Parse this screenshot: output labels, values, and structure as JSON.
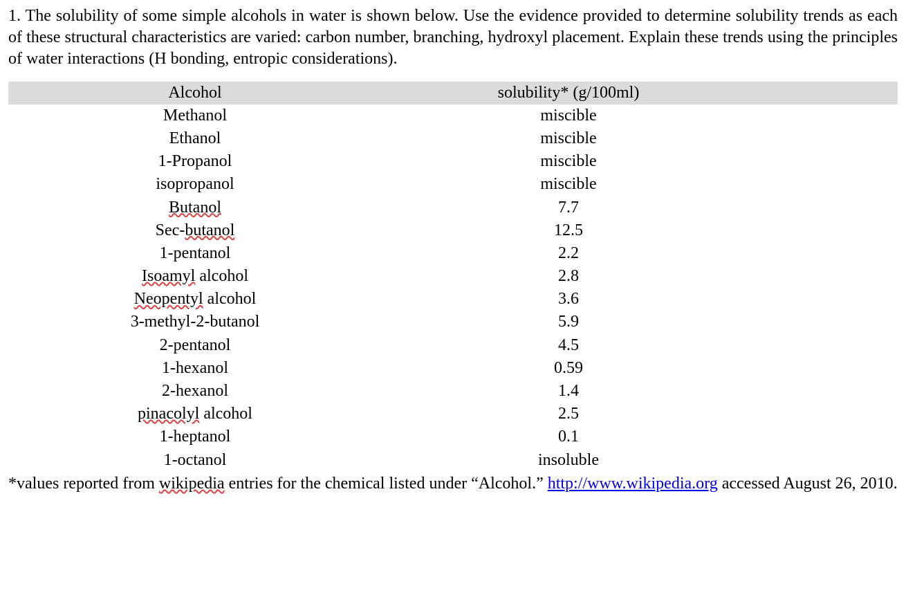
{
  "question": {
    "text": "1. The solubility of some simple alcohols in water is shown below.  Use the evidence provided to determine solubility trends as each of these structural characteristics are varied: carbon number, branching, hydroxyl placement. Explain these trends using the principles of water interactions (H bonding, entropic considerations)."
  },
  "table": {
    "headers": {
      "col1": "Alcohol",
      "col2": "solubility* (g/100ml)"
    },
    "rows": [
      {
        "name_parts": [
          {
            "t": "Methanol",
            "u": false
          }
        ],
        "solubility": "miscible"
      },
      {
        "name_parts": [
          {
            "t": "Ethanol",
            "u": false
          }
        ],
        "solubility": "miscible"
      },
      {
        "name_parts": [
          {
            "t": "1-Propanol",
            "u": false
          }
        ],
        "solubility": "miscible"
      },
      {
        "name_parts": [
          {
            "t": "isopropanol",
            "u": false
          }
        ],
        "solubility": "miscible"
      },
      {
        "name_parts": [
          {
            "t": "Butanol",
            "u": true
          }
        ],
        "solubility": "7.7"
      },
      {
        "name_parts": [
          {
            "t": "Sec-",
            "u": false
          },
          {
            "t": "butanol",
            "u": true
          }
        ],
        "solubility": "12.5"
      },
      {
        "name_parts": [
          {
            "t": "1-pentanol",
            "u": false
          }
        ],
        "solubility": "2.2"
      },
      {
        "name_parts": [
          {
            "t": "Isoamyl",
            "u": true
          },
          {
            "t": " alcohol",
            "u": false
          }
        ],
        "solubility": "2.8"
      },
      {
        "name_parts": [
          {
            "t": "Neopentyl",
            "u": true
          },
          {
            "t": " alcohol",
            "u": false
          }
        ],
        "solubility": "3.6"
      },
      {
        "name_parts": [
          {
            "t": "3-methyl-2-butanol",
            "u": false
          }
        ],
        "solubility": "5.9"
      },
      {
        "name_parts": [
          {
            "t": "2-pentanol",
            "u": false
          }
        ],
        "solubility": "4.5"
      },
      {
        "name_parts": [
          {
            "t": "1-hexanol",
            "u": false
          }
        ],
        "solubility": "0.59"
      },
      {
        "name_parts": [
          {
            "t": "2-hexanol",
            "u": false
          }
        ],
        "solubility": "1.4"
      },
      {
        "name_parts": [
          {
            "t": "pinacolyl",
            "u": true
          },
          {
            "t": " alcohol",
            "u": false
          }
        ],
        "solubility": "2.5"
      },
      {
        "name_parts": [
          {
            "t": "1-heptanol",
            "u": false
          }
        ],
        "solubility": "0.1"
      },
      {
        "name_parts": [
          {
            "t": "1-octanol",
            "u": false
          }
        ],
        "solubility": "insoluble"
      }
    ]
  },
  "footnote": {
    "prefix": "*values reported from ",
    "spelled": "wikipedia",
    "middle": " entries for the chemical listed under “Alcohol.” ",
    "link_text": "http://www.wikipedia.org",
    "suffix": " accessed August 26, 2010."
  }
}
